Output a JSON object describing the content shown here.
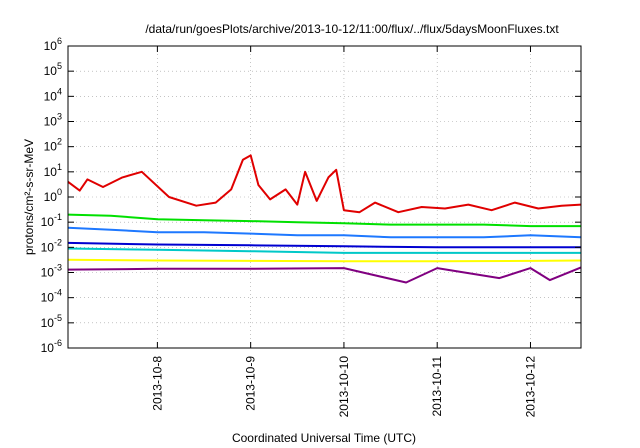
{
  "chart_data": {
    "type": "line",
    "title": "/data/run/goesPlots/archive/2013-10-12/11:00/flux/../flux/5daysMoonFluxes.txt",
    "xlabel": "Coordinated Universal Time (UTC)",
    "ylabel": "protons/cm²-s-sr-MeV",
    "y_scale": "log",
    "ylim": [
      1e-06,
      1000000.0
    ],
    "xlim": [
      "2013-10-07T01:00",
      "2013-10-12T13:00"
    ],
    "grid": true,
    "legend": "none",
    "y_ticks": [
      {
        "base": "10",
        "exp": "-6",
        "value": 1e-06
      },
      {
        "base": "10",
        "exp": "-5",
        "value": 1e-05
      },
      {
        "base": "10",
        "exp": "-4",
        "value": 0.0001
      },
      {
        "base": "10",
        "exp": "-3",
        "value": 0.001
      },
      {
        "base": "10",
        "exp": "-2",
        "value": 0.01
      },
      {
        "base": "10",
        "exp": "-1",
        "value": 0.1
      },
      {
        "base": "10",
        "exp": "0",
        "value": 1
      },
      {
        "base": "10",
        "exp": "1",
        "value": 10
      },
      {
        "base": "10",
        "exp": "2",
        "value": 100
      },
      {
        "base": "10",
        "exp": "3",
        "value": 1000
      },
      {
        "base": "10",
        "exp": "4",
        "value": 10000
      },
      {
        "base": "10",
        "exp": "5",
        "value": 100000
      },
      {
        "base": "10",
        "exp": "6",
        "value": 1000000
      }
    ],
    "x_ticks": [
      {
        "label": "2013-10-8",
        "time": "2013-10-08T00:00"
      },
      {
        "label": "2013-10-9",
        "time": "2013-10-09T00:00"
      },
      {
        "label": "2013-10-10",
        "time": "2013-10-10T00:00"
      },
      {
        "label": "2013-10-11",
        "time": "2013-10-11T00:00"
      },
      {
        "label": "2013-10-12",
        "time": "2013-10-12T00:00"
      }
    ],
    "series": [
      {
        "color": "#e00000",
        "x": [
          "2013-10-07T01:00",
          "2013-10-07T04:00",
          "2013-10-07T06:00",
          "2013-10-07T10:00",
          "2013-10-07T15:00",
          "2013-10-07T20:00",
          "2013-10-08T03:00",
          "2013-10-08T10:00",
          "2013-10-08T15:00",
          "2013-10-08T19:00",
          "2013-10-08T22:00",
          "2013-10-09T00:00",
          "2013-10-09T02:00",
          "2013-10-09T05:00",
          "2013-10-09T09:00",
          "2013-10-09T12:00",
          "2013-10-09T14:00",
          "2013-10-09T17:00",
          "2013-10-09T20:00",
          "2013-10-09T22:00",
          "2013-10-10T00:00",
          "2013-10-10T04:00",
          "2013-10-10T08:00",
          "2013-10-10T14:00",
          "2013-10-10T20:00",
          "2013-10-11T02:00",
          "2013-10-11T08:00",
          "2013-10-11T14:00",
          "2013-10-11T20:00",
          "2013-10-12T02:00",
          "2013-10-12T08:00",
          "2013-10-12T13:00"
        ],
        "values": [
          4,
          1.8,
          5,
          2.5,
          6,
          10,
          1,
          0.45,
          0.6,
          2,
          30,
          45,
          3,
          0.8,
          2,
          0.5,
          10,
          0.7,
          6,
          12,
          0.3,
          0.25,
          0.6,
          0.25,
          0.4,
          0.35,
          0.5,
          0.3,
          0.6,
          0.35,
          0.45,
          0.5
        ]
      },
      {
        "color": "#00e000",
        "x": [
          "2013-10-07T01:00",
          "2013-10-07T12:00",
          "2013-10-08T00:00",
          "2013-10-08T12:00",
          "2013-10-09T00:00",
          "2013-10-09T12:00",
          "2013-10-10T00:00",
          "2013-10-10T12:00",
          "2013-10-11T00:00",
          "2013-10-11T12:00",
          "2013-10-12T00:00",
          "2013-10-12T13:00"
        ],
        "values": [
          0.2,
          0.18,
          0.13,
          0.12,
          0.11,
          0.1,
          0.09,
          0.08,
          0.08,
          0.08,
          0.07,
          0.07
        ]
      },
      {
        "color": "#1e78ff",
        "x": [
          "2013-10-07T01:00",
          "2013-10-07T12:00",
          "2013-10-08T00:00",
          "2013-10-08T12:00",
          "2013-10-09T00:00",
          "2013-10-09T12:00",
          "2013-10-10T00:00",
          "2013-10-10T12:00",
          "2013-10-11T00:00",
          "2013-10-11T12:00",
          "2013-10-12T00:00",
          "2013-10-12T13:00"
        ],
        "values": [
          0.06,
          0.05,
          0.04,
          0.04,
          0.035,
          0.03,
          0.03,
          0.025,
          0.025,
          0.025,
          0.03,
          0.025
        ]
      },
      {
        "color": "#00c8c8",
        "x": [
          "2013-10-07T01:00",
          "2013-10-08T00:00",
          "2013-10-09T00:00",
          "2013-10-10T00:00",
          "2013-10-11T00:00",
          "2013-10-12T00:00",
          "2013-10-12T13:00"
        ],
        "values": [
          0.009,
          0.008,
          0.007,
          0.006,
          0.006,
          0.006,
          0.006
        ]
      },
      {
        "color": "#0000d0",
        "x": [
          "2013-10-07T01:00",
          "2013-10-08T00:00",
          "2013-10-09T00:00",
          "2013-10-10T00:00",
          "2013-10-11T00:00",
          "2013-10-12T00:00",
          "2013-10-12T13:00"
        ],
        "values": [
          0.015,
          0.013,
          0.012,
          0.011,
          0.01,
          0.01,
          0.01
        ]
      },
      {
        "color": "#ffff00",
        "x": [
          "2013-10-07T01:00",
          "2013-10-08T00:00",
          "2013-10-09T00:00",
          "2013-10-10T00:00",
          "2013-10-11T00:00",
          "2013-10-12T00:00",
          "2013-10-12T13:00"
        ],
        "values": [
          0.0032,
          0.003,
          0.0029,
          0.0028,
          0.0028,
          0.0029,
          0.003
        ]
      },
      {
        "color": "#800080",
        "x": [
          "2013-10-07T01:00",
          "2013-10-08T00:00",
          "2013-10-09T00:00",
          "2013-10-10T00:00",
          "2013-10-10T16:00",
          "2013-10-11T00:00",
          "2013-10-11T16:00",
          "2013-10-12T00:00",
          "2013-10-12T05:00",
          "2013-10-12T13:00"
        ],
        "values": [
          0.0013,
          0.0014,
          0.0014,
          0.0015,
          0.0004,
          0.0015,
          0.0006,
          0.0015,
          0.0005,
          0.0016
        ]
      }
    ]
  }
}
